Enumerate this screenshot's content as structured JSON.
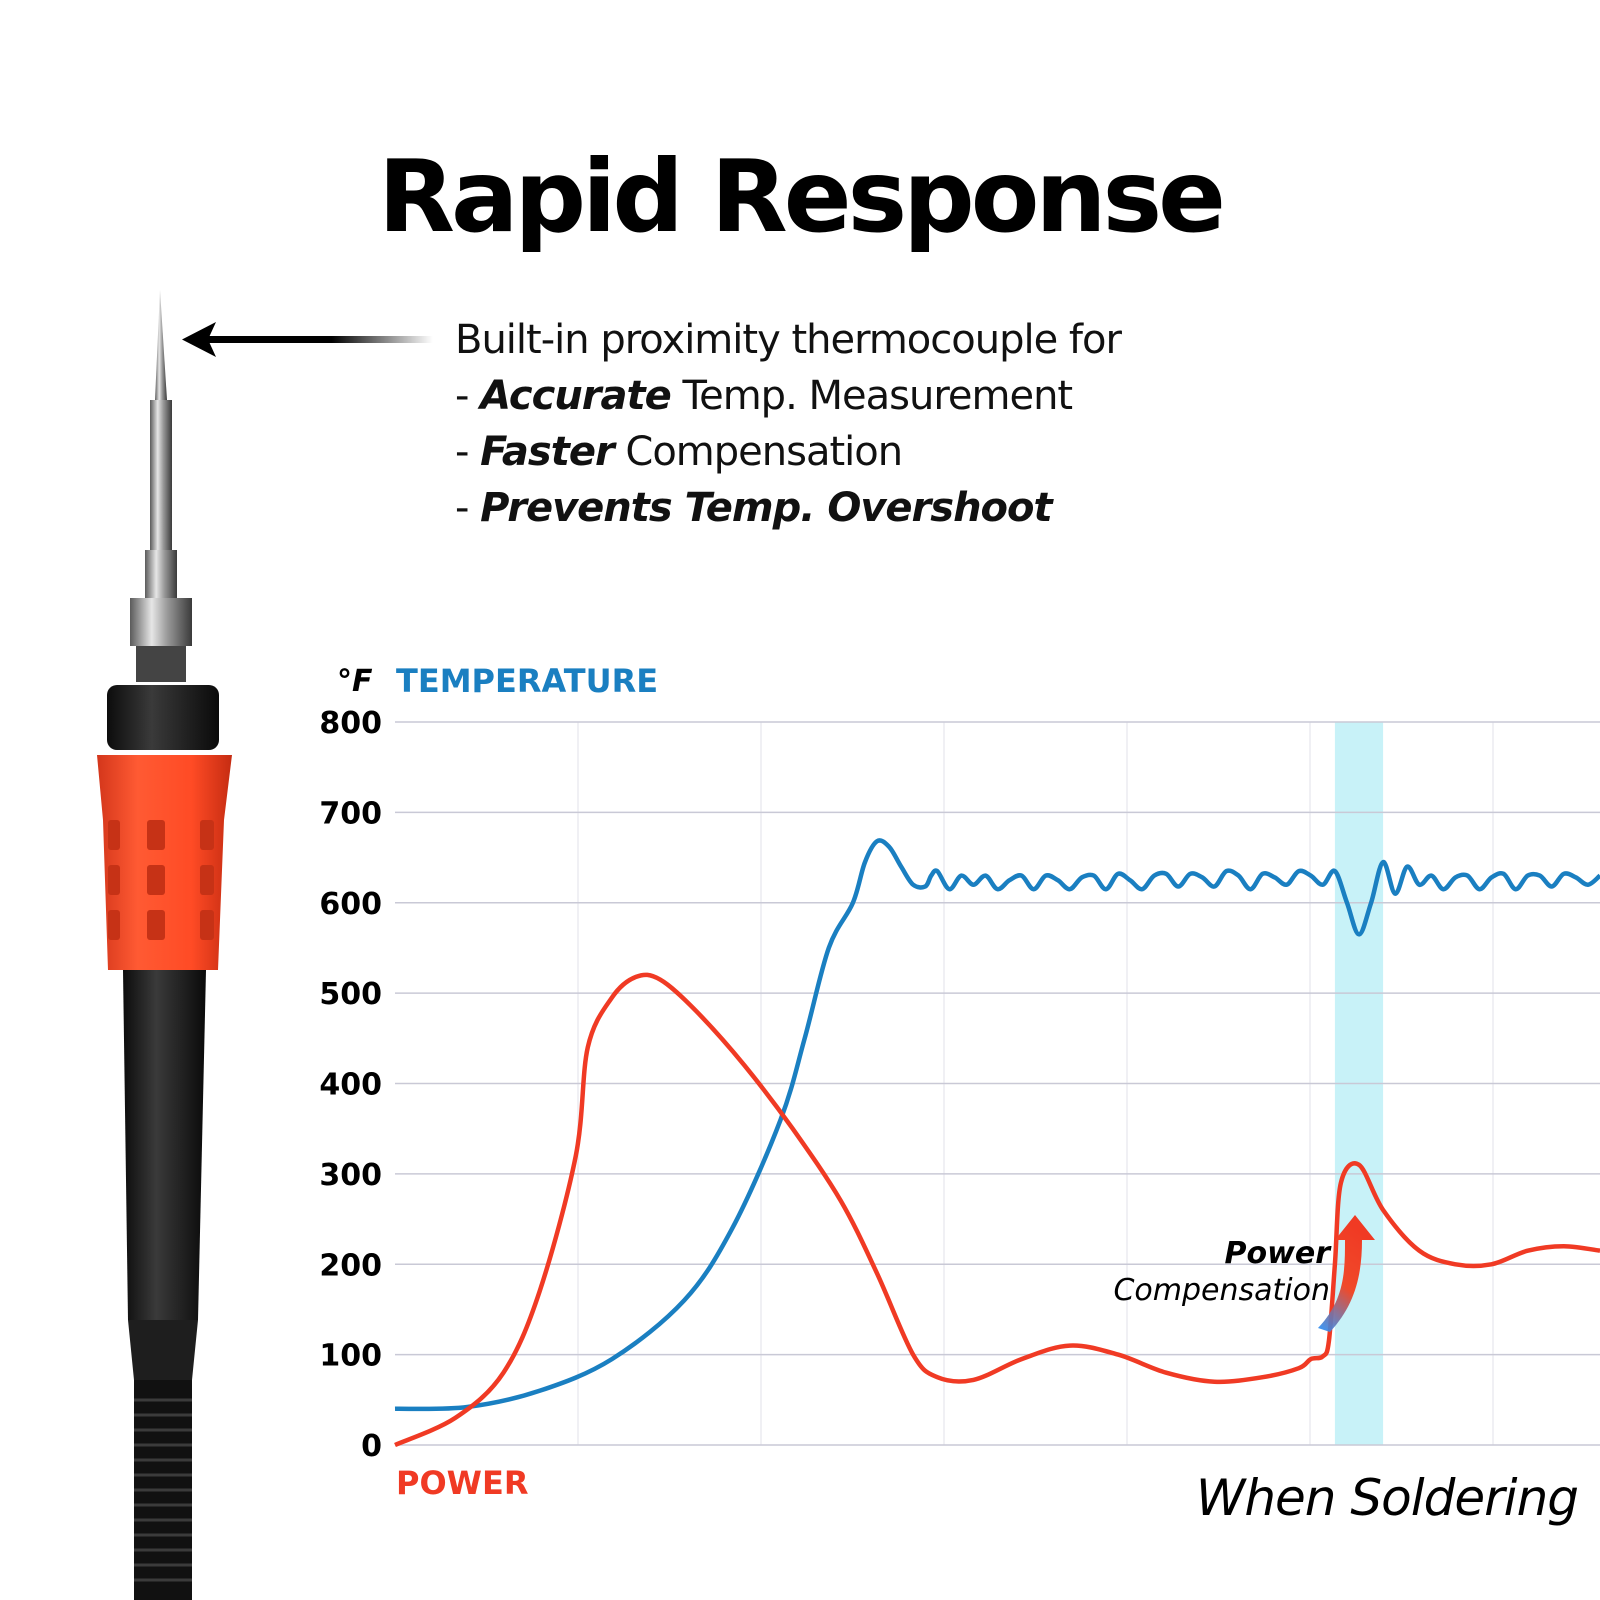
{
  "headline": "Rapid Response",
  "feature": {
    "intro": "Built-in proximity  thermocouple for",
    "bullets": [
      {
        "dash": "- ",
        "bold": "Accurate",
        "rest": " Temp. Measurement"
      },
      {
        "dash": "- ",
        "bold": "Faster",
        "rest": " Compensation"
      },
      {
        "dash": "- ",
        "bold": "Prevents Temp. Overshoot",
        "rest": ""
      }
    ]
  },
  "colors": {
    "temperature": "#1a7fc1",
    "power": "#f03a24",
    "highlight": "#c8f2f8",
    "grip": "#ff4b25",
    "grid": "#c9c9d6"
  },
  "chart_data": {
    "type": "line",
    "title": "Rapid Response",
    "unit_label": "°F",
    "y_title": "TEMPERATURE",
    "x_title": "POWER",
    "ylim": [
      0,
      800
    ],
    "xlim": [
      0,
      1
    ],
    "y_ticks": [
      0,
      100,
      200,
      300,
      400,
      500,
      600,
      700,
      800
    ],
    "grid": true,
    "annotation": {
      "bold": "Power",
      "text": "Compensation"
    },
    "highlight_region": {
      "label": "When Soldering",
      "x_start": 0.78,
      "x_end": 0.82
    },
    "series": [
      {
        "name": "Temperature",
        "color": "#1a7fc1",
        "points": [
          [
            0,
            40
          ],
          [
            0.06,
            42
          ],
          [
            0.12,
            60
          ],
          [
            0.18,
            95
          ],
          [
            0.24,
            160
          ],
          [
            0.28,
            240
          ],
          [
            0.32,
            360
          ],
          [
            0.34,
            450
          ],
          [
            0.36,
            550
          ],
          [
            0.38,
            600
          ],
          [
            0.39,
            645
          ],
          [
            0.4,
            668
          ],
          [
            0.41,
            662
          ],
          [
            0.42,
            640
          ],
          [
            0.43,
            620
          ],
          [
            0.44,
            618
          ],
          [
            0.445,
            630
          ],
          [
            0.45,
            635
          ],
          [
            0.46,
            615
          ],
          [
            0.47,
            630
          ],
          [
            0.48,
            620
          ],
          [
            0.49,
            630
          ],
          [
            0.5,
            615
          ],
          [
            0.51,
            625
          ],
          [
            0.52,
            630
          ],
          [
            0.53,
            615
          ],
          [
            0.54,
            630
          ],
          [
            0.55,
            625
          ],
          [
            0.56,
            615
          ],
          [
            0.57,
            628
          ],
          [
            0.58,
            630
          ],
          [
            0.59,
            615
          ],
          [
            0.6,
            632
          ],
          [
            0.61,
            625
          ],
          [
            0.62,
            615
          ],
          [
            0.63,
            630
          ],
          [
            0.64,
            632
          ],
          [
            0.65,
            618
          ],
          [
            0.66,
            632
          ],
          [
            0.67,
            628
          ],
          [
            0.68,
            618
          ],
          [
            0.69,
            635
          ],
          [
            0.7,
            630
          ],
          [
            0.71,
            615
          ],
          [
            0.72,
            632
          ],
          [
            0.73,
            628
          ],
          [
            0.74,
            620
          ],
          [
            0.75,
            635
          ],
          [
            0.76,
            630
          ],
          [
            0.77,
            620
          ],
          [
            0.78,
            635
          ],
          [
            0.79,
            600
          ],
          [
            0.8,
            565
          ],
          [
            0.81,
            600
          ],
          [
            0.82,
            645
          ],
          [
            0.83,
            610
          ],
          [
            0.84,
            640
          ],
          [
            0.85,
            620
          ],
          [
            0.86,
            630
          ],
          [
            0.87,
            615
          ],
          [
            0.88,
            628
          ],
          [
            0.89,
            630
          ],
          [
            0.9,
            615
          ],
          [
            0.91,
            628
          ],
          [
            0.92,
            632
          ],
          [
            0.93,
            615
          ],
          [
            0.94,
            630
          ],
          [
            0.95,
            630
          ],
          [
            0.96,
            618
          ],
          [
            0.97,
            632
          ],
          [
            0.98,
            628
          ],
          [
            0.99,
            620
          ],
          [
            1.0,
            630
          ]
        ]
      },
      {
        "name": "Power",
        "color": "#f03a24",
        "points": [
          [
            0,
            0
          ],
          [
            0.05,
            30
          ],
          [
            0.09,
            80
          ],
          [
            0.12,
            170
          ],
          [
            0.15,
            320
          ],
          [
            0.16,
            440
          ],
          [
            0.18,
            495
          ],
          [
            0.2,
            518
          ],
          [
            0.22,
            515
          ],
          [
            0.25,
            480
          ],
          [
            0.29,
            420
          ],
          [
            0.33,
            350
          ],
          [
            0.37,
            270
          ],
          [
            0.4,
            190
          ],
          [
            0.43,
            100
          ],
          [
            0.45,
            75
          ],
          [
            0.48,
            72
          ],
          [
            0.52,
            95
          ],
          [
            0.56,
            110
          ],
          [
            0.6,
            100
          ],
          [
            0.64,
            80
          ],
          [
            0.68,
            70
          ],
          [
            0.72,
            75
          ],
          [
            0.75,
            85
          ],
          [
            0.76,
            95
          ],
          [
            0.77,
            98
          ],
          [
            0.775,
            115
          ],
          [
            0.78,
            200
          ],
          [
            0.785,
            290
          ],
          [
            0.8,
            310
          ],
          [
            0.82,
            260
          ],
          [
            0.85,
            215
          ],
          [
            0.88,
            200
          ],
          [
            0.91,
            200
          ],
          [
            0.94,
            215
          ],
          [
            0.97,
            220
          ],
          [
            1.0,
            215
          ]
        ]
      }
    ]
  }
}
